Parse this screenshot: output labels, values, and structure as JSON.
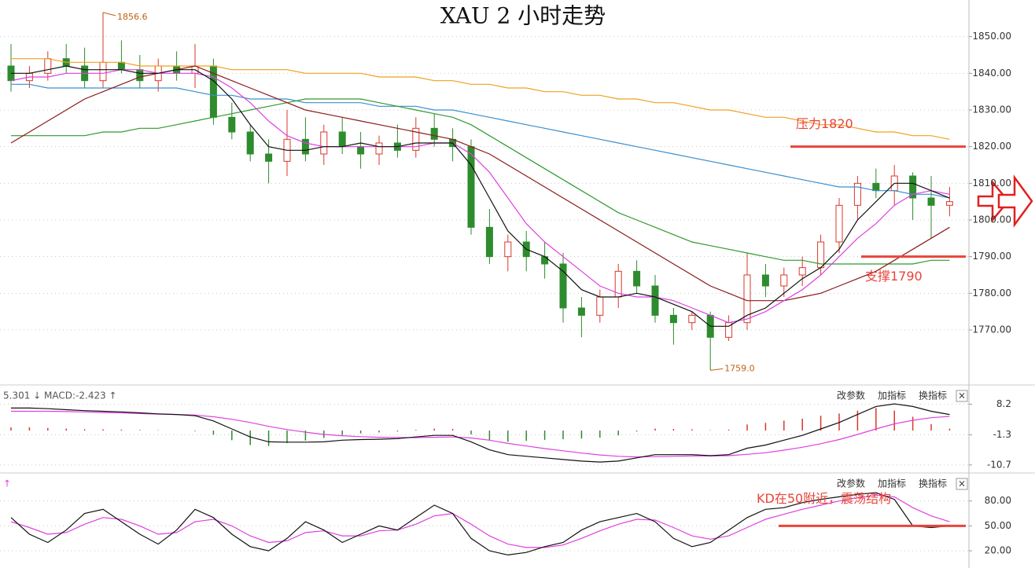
{
  "chart_data": [
    {
      "type": "candlestick",
      "title": "XAU 2 小时走势",
      "open": [
        1842,
        1838,
        1840,
        1844,
        1842,
        1838,
        1843,
        1841,
        1838,
        1842,
        1840,
        1842,
        1828,
        1824,
        1818,
        1816,
        1822,
        1818,
        1824,
        1820,
        1818,
        1821,
        1819,
        1825,
        1822,
        1820,
        1798,
        1790,
        1794,
        1790,
        1788,
        1776,
        1774,
        1779,
        1786,
        1782,
        1774,
        1772,
        1774,
        1768,
        1772,
        1785,
        1782,
        1785,
        1787,
        1794,
        1804,
        1810,
        1808,
        1812,
        1806,
        1804
      ],
      "high": [
        1848,
        1842,
        1846,
        1848,
        1847,
        1856.6,
        1849,
        1845,
        1844,
        1846,
        1848,
        1844,
        1832,
        1826,
        1822,
        1830,
        1828,
        1826,
        1828,
        1824,
        1823,
        1826,
        1828,
        1829,
        1825,
        1822,
        1803,
        1796,
        1797,
        1794,
        1791,
        1779,
        1781,
        1788,
        1789,
        1785,
        1776,
        1775,
        1775,
        1774,
        1791,
        1788,
        1787,
        1790,
        1796,
        1806,
        1812,
        1814,
        1815,
        1813,
        1812,
        1809
      ],
      "low": [
        1835,
        1836,
        1838,
        1840,
        1836,
        1836,
        1840,
        1836,
        1835,
        1838,
        1836,
        1826,
        1822,
        1816,
        1810,
        1812,
        1816,
        1815,
        1818,
        1814,
        1815,
        1817,
        1817,
        1820,
        1816,
        1796,
        1788,
        1786,
        1786,
        1784,
        1772,
        1768,
        1772,
        1776,
        1780,
        1772,
        1766,
        1770,
        1759,
        1767,
        1770,
        1779,
        1779,
        1782,
        1785,
        1791,
        1800,
        1806,
        1804,
        1800,
        1795,
        1801
      ],
      "close": [
        1838,
        1840,
        1844,
        1842,
        1838,
        1843,
        1841,
        1838,
        1842,
        1840,
        1842,
        1828,
        1824,
        1818,
        1816,
        1822,
        1818,
        1824,
        1820,
        1818,
        1821,
        1819,
        1825,
        1822,
        1820,
        1798,
        1790,
        1794,
        1790,
        1788,
        1776,
        1774,
        1779,
        1786,
        1782,
        1774,
        1772,
        1774,
        1768,
        1772,
        1785,
        1782,
        1785,
        1787,
        1794,
        1804,
        1810,
        1808,
        1812,
        1806,
        1804,
        1805
      ],
      "up_color": "#d9382a",
      "down_color": "#2e8b2e",
      "lines": [
        {
          "color": "#f0a020",
          "values": [
            1844,
            1844,
            1844,
            1843,
            1843,
            1843,
            1843,
            1842,
            1842,
            1842,
            1842,
            1842,
            1841,
            1841,
            1841,
            1841,
            1840,
            1840,
            1840,
            1840,
            1839,
            1839,
            1839,
            1838,
            1838,
            1837,
            1837,
            1836,
            1836,
            1835,
            1835,
            1834,
            1834,
            1833,
            1833,
            1832,
            1832,
            1831,
            1830,
            1830,
            1829,
            1828,
            1828,
            1827,
            1826,
            1826,
            1825,
            1824,
            1824,
            1823,
            1823,
            1822
          ]
        },
        {
          "color": "#3a8fd0",
          "values": [
            1837,
            1837,
            1836,
            1836,
            1836,
            1836,
            1836,
            1836,
            1836,
            1836,
            1835,
            1834,
            1834,
            1833,
            1833,
            1833,
            1832,
            1832,
            1832,
            1832,
            1831,
            1831,
            1831,
            1830,
            1830,
            1829,
            1828,
            1827,
            1826,
            1825,
            1824,
            1823,
            1822,
            1821,
            1820,
            1819,
            1818,
            1817,
            1816,
            1815,
            1814,
            1813,
            1812,
            1811,
            1810,
            1809,
            1809,
            1808,
            1808,
            1807,
            1807,
            1806
          ]
        },
        {
          "color": "#2f9a2f",
          "values": [
            1823,
            1823,
            1823,
            1823,
            1823,
            1824,
            1824,
            1825,
            1825,
            1826,
            1827,
            1828,
            1829,
            1830,
            1831,
            1832,
            1833,
            1833,
            1833,
            1833,
            1832,
            1831,
            1830,
            1829,
            1828,
            1826,
            1823,
            1820,
            1817,
            1814,
            1811,
            1808,
            1805,
            1802,
            1800,
            1798,
            1796,
            1794,
            1793,
            1792,
            1791,
            1790,
            1789,
            1789,
            1788,
            1788,
            1788,
            1788,
            1788,
            1788,
            1789,
            1789
          ]
        },
        {
          "color": "#8b1a1a",
          "values": [
            1821,
            1824,
            1827,
            1830,
            1833,
            1835,
            1837,
            1839,
            1840,
            1841,
            1842,
            1840,
            1838,
            1836,
            1834,
            1832,
            1830,
            1829,
            1828,
            1827,
            1826,
            1825,
            1824,
            1823,
            1822,
            1820,
            1818,
            1815,
            1812,
            1809,
            1806,
            1803,
            1800,
            1797,
            1794,
            1791,
            1788,
            1785,
            1782,
            1780,
            1778,
            1778,
            1778,
            1779,
            1780,
            1782,
            1784,
            1786,
            1789,
            1792,
            1795,
            1798
          ]
        },
        {
          "color": "#e040e0",
          "values": [
            1838,
            1839,
            1839,
            1840,
            1840,
            1840,
            1841,
            1841,
            1840,
            1840,
            1840,
            1839,
            1836,
            1832,
            1827,
            1823,
            1821,
            1820,
            1820,
            1820,
            1820,
            1820,
            1820,
            1821,
            1821,
            1818,
            1813,
            1806,
            1799,
            1794,
            1790,
            1786,
            1782,
            1780,
            1779,
            1779,
            1778,
            1776,
            1774,
            1772,
            1773,
            1775,
            1778,
            1781,
            1785,
            1790,
            1795,
            1799,
            1804,
            1807,
            1808,
            1807
          ]
        },
        {
          "color": "#111111",
          "values": [
            1840,
            1840,
            1841,
            1842,
            1841,
            1841,
            1841,
            1840,
            1840,
            1841,
            1841,
            1838,
            1833,
            1826,
            1820,
            1819,
            1819,
            1820,
            1820,
            1821,
            1820,
            1820,
            1821,
            1821,
            1821,
            1815,
            1806,
            1797,
            1792,
            1790,
            1786,
            1781,
            1779,
            1779,
            1780,
            1779,
            1777,
            1775,
            1771,
            1771,
            1774,
            1776,
            1780,
            1784,
            1787,
            1792,
            1800,
            1805,
            1810,
            1810,
            1808,
            1806
          ]
        }
      ],
      "price_labels": [
        1856.6,
        {
          "value": 1759,
          "label": "1759.0"
        }
      ],
      "levels": [
        {
          "label": "压力1820",
          "value": 1820,
          "color": "#e8443a"
        },
        {
          "label": "支撑1790",
          "value": 1790,
          "color": "#e8443a"
        }
      ],
      "ylim": [
        1755,
        1860
      ],
      "yticks": [
        {
          "value": 1770,
          "label": "1770.00"
        },
        {
          "value": 1780,
          "label": "1780.00"
        },
        {
          "value": 1790,
          "label": "1790.00"
        },
        {
          "value": 1800,
          "label": "1800.00"
        },
        {
          "value": 1810,
          "label": "1810.00"
        },
        {
          "value": 1820,
          "label": "1820.00"
        },
        {
          "value": 1830,
          "label": "1830.00"
        },
        {
          "value": 1840,
          "label": "1840.00"
        },
        {
          "value": 1850,
          "label": "1850.00"
        }
      ],
      "grid": true
    },
    {
      "type": "macd",
      "header": "5.301 ↓ MACD:-2.423 ↑",
      "buttons": [
        "改参数",
        "加指标",
        "换指标",
        "×"
      ],
      "lines": [
        {
          "color": "#e040e0",
          "values": [
            6,
            6,
            6,
            5.9,
            5.8,
            5.6,
            5.5,
            5.3,
            5.1,
            5,
            4.8,
            4.3,
            3.5,
            2.5,
            1.3,
            0.3,
            -0.5,
            -1.2,
            -1.6,
            -1.9,
            -2.1,
            -2.2,
            -2.2,
            -2.1,
            -2,
            -2.3,
            -3,
            -4,
            -4.8,
            -5.6,
            -6.3,
            -7,
            -7.6,
            -8,
            -8.2,
            -8.1,
            -8,
            -7.9,
            -7.9,
            -7.8,
            -7.4,
            -6.9,
            -6.1,
            -5.2,
            -4.1,
            -2.8,
            -1.2,
            0.5,
            2.1,
            3.2,
            4,
            4.4
          ]
        },
        {
          "color": "#111111",
          "values": [
            7,
            7,
            6.8,
            6.5,
            6.2,
            6,
            5.8,
            5.5,
            5.2,
            5,
            4.6,
            3,
            0.5,
            -2,
            -3.5,
            -3.6,
            -3.6,
            -3.5,
            -3,
            -2.8,
            -2.7,
            -2.5,
            -2,
            -1.5,
            -1.5,
            -3.5,
            -6,
            -7.5,
            -8,
            -8.5,
            -9,
            -9.5,
            -9.8,
            -9.5,
            -8.5,
            -7.5,
            -7.5,
            -7.5,
            -7.8,
            -7.5,
            -5.5,
            -4.5,
            -3,
            -1.5,
            0.5,
            2.5,
            5,
            7.5,
            8.3,
            7.5,
            6,
            5
          ]
        }
      ],
      "histogram": [
        1,
        1,
        0.8,
        0.6,
        0.4,
        0.4,
        0.3,
        0.2,
        0.1,
        0,
        -0.2,
        -1.3,
        -3,
        -4.5,
        -4.8,
        -3.9,
        -3.1,
        -2.3,
        -1.4,
        -0.9,
        -0.6,
        -0.3,
        0.2,
        0.6,
        0.5,
        -1.2,
        -3,
        -3.5,
        -3.2,
        -2.9,
        -2.7,
        -2.5,
        -2.2,
        -1.5,
        -0.3,
        0.6,
        0.5,
        0.4,
        0.1,
        0.3,
        1.9,
        2.4,
        3.1,
        3.7,
        4.6,
        5.3,
        6.2,
        7,
        6.2,
        4.3,
        2,
        0.6
      ],
      "up_color": "#d9382a",
      "down_color": "#2e8b2e",
      "ylim": [
        -12.7,
        13.7
      ],
      "yticks": [
        8.2,
        -1.3,
        -10.7
      ],
      "grid": true
    },
    {
      "type": "kd",
      "header": "↑",
      "buttons": [
        "改参数",
        "加指标",
        "换指标",
        "×"
      ],
      "lines": [
        {
          "color": "#e040e0",
          "values": [
            55,
            48,
            40,
            42,
            52,
            60,
            58,
            50,
            40,
            42,
            55,
            58,
            50,
            38,
            30,
            32,
            42,
            44,
            38,
            38,
            44,
            45,
            52,
            62,
            65,
            52,
            38,
            28,
            24,
            24,
            27,
            35,
            44,
            52,
            58,
            57,
            48,
            38,
            34,
            38,
            48,
            58,
            64,
            70,
            75,
            80,
            84,
            87,
            85,
            72,
            62,
            55
          ]
        },
        {
          "color": "#111111",
          "values": [
            60,
            40,
            30,
            45,
            65,
            70,
            55,
            40,
            28,
            45,
            70,
            60,
            40,
            25,
            20,
            35,
            55,
            45,
            30,
            40,
            50,
            45,
            60,
            75,
            65,
            35,
            20,
            15,
            18,
            25,
            30,
            45,
            55,
            60,
            65,
            55,
            35,
            25,
            30,
            45,
            60,
            70,
            72,
            78,
            82,
            85,
            88,
            90,
            82,
            50,
            48,
            50
          ]
        }
      ],
      "levels": [
        {
          "label": "KD在50附近，震荡结构",
          "value": 50,
          "color": "#e8443a"
        }
      ],
      "ylim": [
        5.9,
        111.9
      ],
      "yticks": [
        {
          "value": 20,
          "label": "20.00"
        },
        {
          "value": 50,
          "label": "50.00"
        },
        {
          "value": 80,
          "label": "80.00"
        }
      ],
      "grid": true
    }
  ]
}
